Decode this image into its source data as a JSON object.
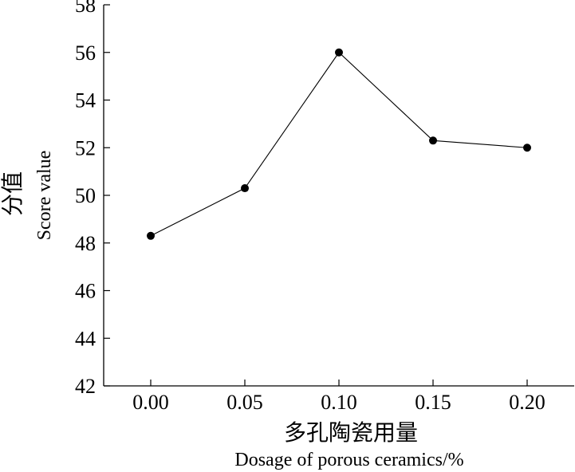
{
  "chart_data": {
    "type": "line",
    "x": [
      0.0,
      0.05,
      0.1,
      0.15,
      0.2
    ],
    "x_tick_labels": [
      "0.00",
      "0.05",
      "0.10",
      "0.15",
      "0.20"
    ],
    "series": [
      {
        "values": [
          48.3,
          50.3,
          56.0,
          52.3,
          52.0
        ]
      }
    ],
    "y_ticks": [
      42,
      44,
      46,
      48,
      50,
      52,
      54,
      56,
      58
    ],
    "y_tick_labels": [
      "42",
      "44",
      "46",
      "48",
      "50",
      "52",
      "54",
      "56",
      "58"
    ],
    "ylim": [
      42,
      58
    ],
    "xlabel_cn": "多孔陶瓷用量",
    "xlabel_en": "Dosage of porous ceramics/%",
    "ylabel_cn": "分值",
    "ylabel_en": "Score value",
    "grid": false,
    "marker": "filled-circle",
    "line_color": "#000000"
  }
}
